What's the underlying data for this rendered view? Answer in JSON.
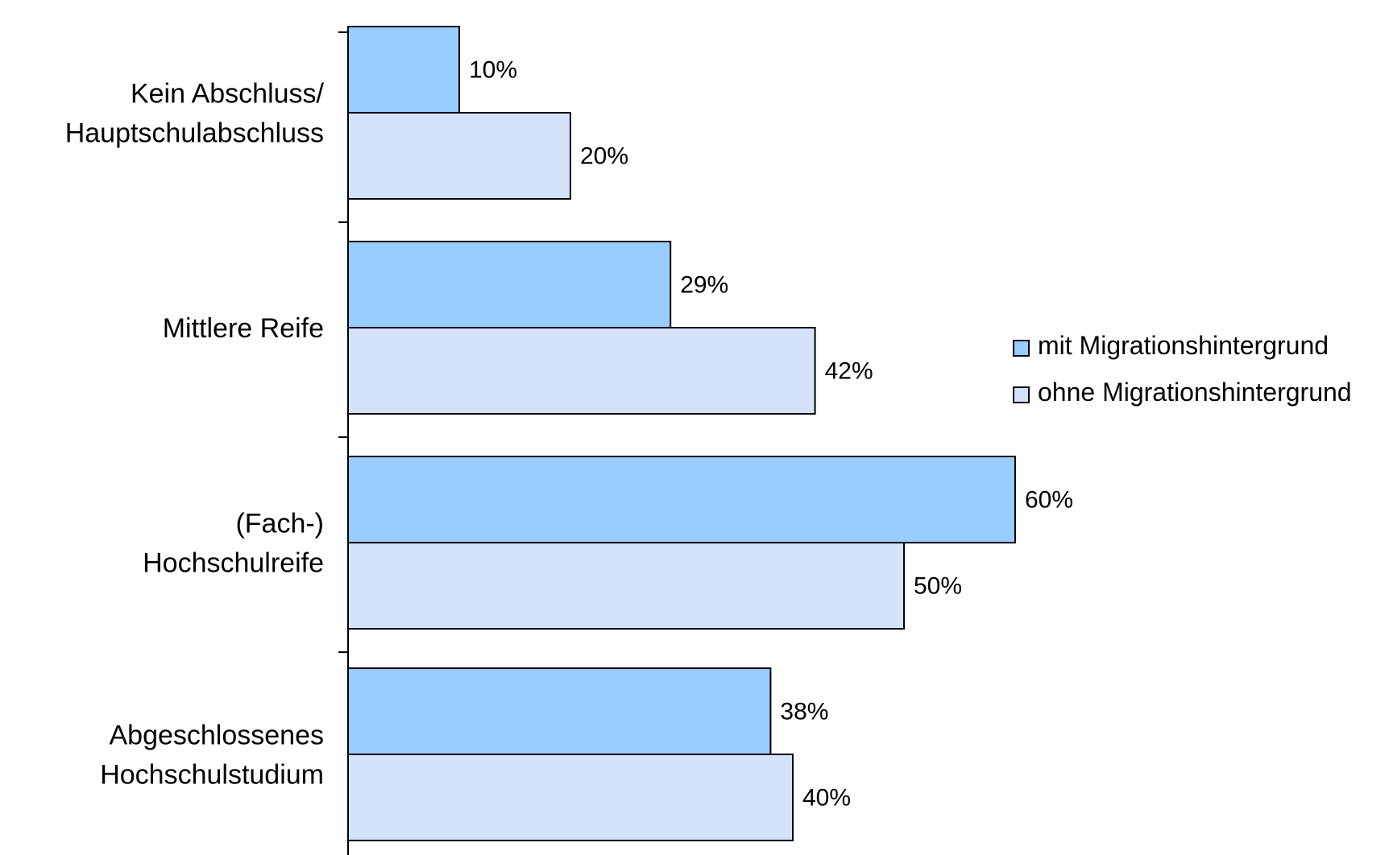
{
  "chart_data": {
    "type": "bar",
    "orientation": "horizontal",
    "categories": [
      [
        "Kein Abschluss/",
        "Hauptschulabschluss"
      ],
      [
        "Mittlere Reife"
      ],
      [
        "(Fach-)",
        "Hochschulreife"
      ],
      [
        "Abgeschlossenes",
        "Hochschulstudium"
      ]
    ],
    "series": [
      {
        "name": "mit Migrationshintergrund",
        "values": [
          10,
          29,
          60,
          38
        ],
        "labels": [
          "10%",
          "29%",
          "60%",
          "38%"
        ],
        "color": "#99CCFF"
      },
      {
        "name": "ohne Migrationshintergrund",
        "values": [
          20,
          42,
          50,
          40
        ],
        "labels": [
          "20%",
          "42%",
          "50%",
          "40%"
        ],
        "color": "#D4E2FA"
      }
    ],
    "xlim": [
      0,
      100
    ],
    "grid": false,
    "legend_position": "right"
  }
}
